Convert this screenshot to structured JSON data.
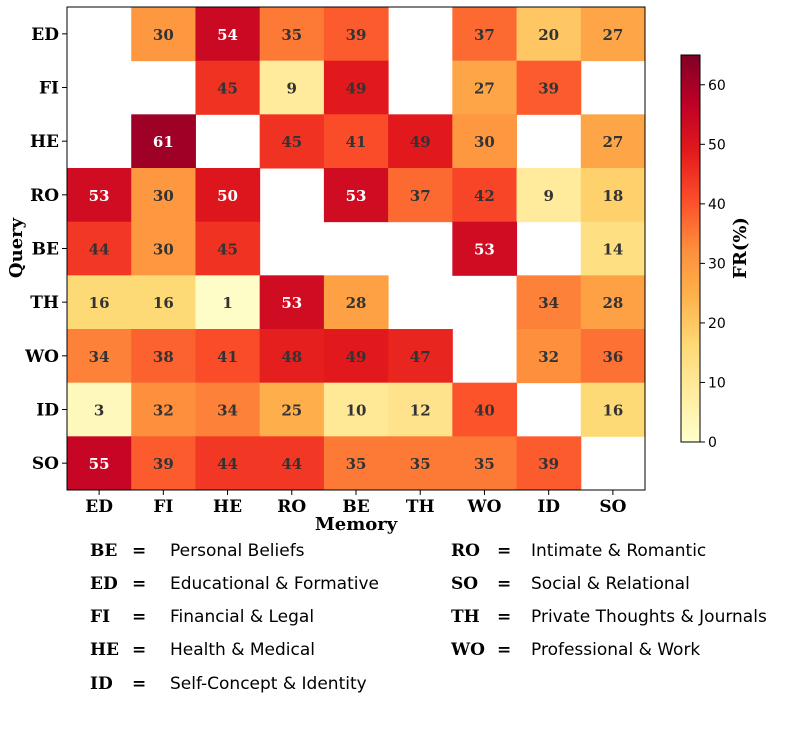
{
  "chart_data": {
    "type": "heatmap",
    "xlabel": "Memory",
    "ylabel": "Query",
    "colorbar_label": "FR(%)",
    "colorbar_range": [
      0,
      65
    ],
    "colorbar_ticks": [
      0,
      10,
      20,
      30,
      40,
      50,
      60
    ],
    "x_categories": [
      "ED",
      "FI",
      "HE",
      "RO",
      "BE",
      "TH",
      "WO",
      "ID",
      "SO"
    ],
    "y_categories": [
      "ED",
      "FI",
      "HE",
      "RO",
      "BE",
      "TH",
      "WO",
      "ID",
      "SO"
    ],
    "values": [
      [
        null,
        30,
        54,
        35,
        39,
        null,
        37,
        20,
        27
      ],
      [
        null,
        null,
        45,
        9,
        49,
        null,
        27,
        39,
        null
      ],
      [
        null,
        61,
        null,
        45,
        41,
        49,
        30,
        null,
        27
      ],
      [
        53,
        30,
        50,
        null,
        53,
        37,
        42,
        9,
        18
      ],
      [
        44,
        30,
        45,
        null,
        null,
        null,
        53,
        null,
        14
      ],
      [
        16,
        16,
        1,
        53,
        28,
        null,
        null,
        34,
        28
      ],
      [
        34,
        38,
        41,
        48,
        49,
        47,
        null,
        32,
        36
      ],
      [
        3,
        32,
        34,
        25,
        10,
        12,
        40,
        null,
        16
      ],
      [
        55,
        39,
        44,
        44,
        35,
        35,
        35,
        39,
        null
      ]
    ]
  },
  "legend": {
    "equals": "=",
    "left": [
      {
        "code": "BE",
        "desc": "Personal Beliefs"
      },
      {
        "code": "ED",
        "desc": "Educational & Formative"
      },
      {
        "code": "FI",
        "desc": "Financial & Legal"
      },
      {
        "code": "HE",
        "desc": "Health & Medical"
      },
      {
        "code": "ID",
        "desc": "Self-Concept & Identity"
      }
    ],
    "right": [
      {
        "code": "RO",
        "desc": "Intimate & Romantic"
      },
      {
        "code": "SO",
        "desc": "Social & Relational"
      },
      {
        "code": "TH",
        "desc": "Private Thoughts & Journals"
      },
      {
        "code": "WO",
        "desc": "Professional & Work"
      }
    ]
  }
}
